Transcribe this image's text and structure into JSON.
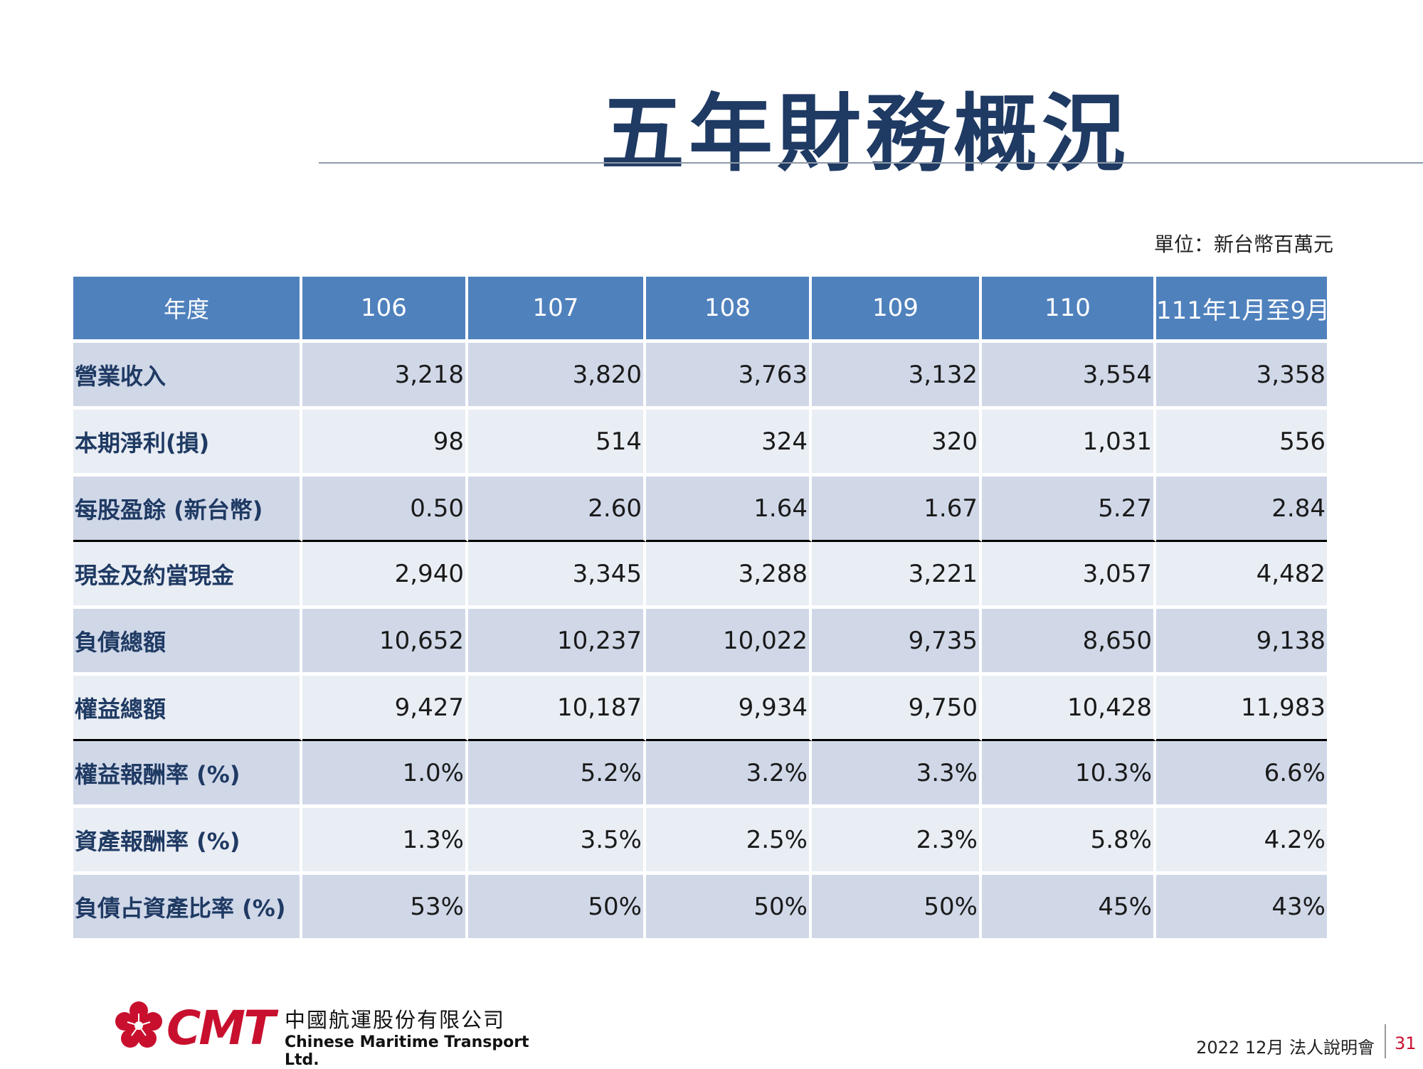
{
  "title": "五年財務概況",
  "unit": "單位：新台幣百萬元",
  "table": {
    "header": [
      "年度",
      "106",
      "107",
      "108",
      "109",
      "110",
      "111年1月至9月"
    ],
    "rows": [
      {
        "label": "營業收入",
        "values": [
          "3,218",
          "3,820",
          "3,763",
          "3,132",
          "3,554",
          "3,358"
        ]
      },
      {
        "label": "本期淨利(損)",
        "values": [
          "98",
          "514",
          "324",
          "320",
          "1,031",
          "556"
        ]
      },
      {
        "label": "每股盈餘 (新台幣)",
        "values": [
          "0.50",
          "2.60",
          "1.64",
          "1.67",
          "5.27",
          "2.84"
        ]
      },
      {
        "label": "現金及約當現金",
        "values": [
          "2,940",
          "3,345",
          "3,288",
          "3,221",
          "3,057",
          "4,482"
        ]
      },
      {
        "label": "負債總額",
        "values": [
          "10,652",
          "10,237",
          "10,022",
          "9,735",
          "8,650",
          "9,138"
        ]
      },
      {
        "label": "權益總額",
        "values": [
          "9,427",
          "10,187",
          "9,934",
          "9,750",
          "10,428",
          "11,983"
        ]
      },
      {
        "label": "權益報酬率 (%)",
        "values": [
          "1.0%",
          "5.2%",
          "3.2%",
          "3.3%",
          "10.3%",
          "6.6%"
        ]
      },
      {
        "label": "資產報酬率 (%)",
        "values": [
          "1.3%",
          "3.5%",
          "2.5%",
          "2.3%",
          "5.8%",
          "4.2%"
        ]
      },
      {
        "label": "負債占資產比率 (%)",
        "values": [
          "53%",
          "50%",
          "50%",
          "50%",
          "45%",
          "43%"
        ]
      }
    ]
  },
  "logo": {
    "mark": "CMT",
    "name_cn": "中國航運股份有限公司",
    "name_en": "Chinese Maritime Transport Ltd.",
    "icon": "plum-blossom-icon"
  },
  "footer": {
    "event": "2022  12月 法人說明會",
    "page": "31"
  },
  "colors": {
    "title": "#1f3a63",
    "header_bg": "#4f81bd",
    "row_odd": "#d0d8e8",
    "row_even": "#e9edf4",
    "brand_red": "#c8102e"
  }
}
